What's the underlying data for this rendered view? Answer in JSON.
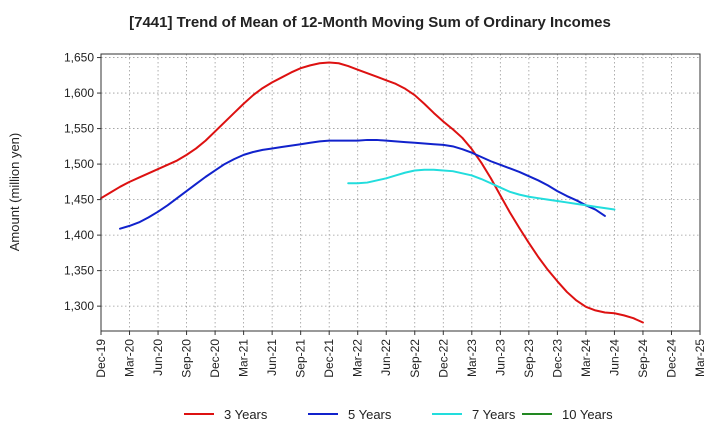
{
  "chart_data": {
    "type": "line",
    "title": "[7441]  Trend of Mean of 12-Month Moving Sum of Ordinary Incomes",
    "xlabel": "",
    "ylabel": "Amount (million yen)",
    "ylim": [
      1265,
      1655
    ],
    "yticks": [
      1300,
      1350,
      1400,
      1450,
      1500,
      1550,
      1600,
      1650
    ],
    "ytick_labels": [
      "1,300",
      "1,350",
      "1,400",
      "1,450",
      "1,500",
      "1,550",
      "1,600",
      "1,650"
    ],
    "x_start": "Dec-19",
    "x_months_total": 63,
    "xtick_labels": [
      "Dec-19",
      "Mar-20",
      "Jun-20",
      "Sep-20",
      "Dec-20",
      "Mar-21",
      "Jun-21",
      "Sep-21",
      "Dec-21",
      "Mar-22",
      "Jun-22",
      "Sep-22",
      "Dec-22",
      "Mar-23",
      "Jun-23",
      "Sep-23",
      "Dec-23",
      "Mar-24",
      "Jun-24",
      "Sep-24",
      "Dec-24",
      "Mar-25"
    ],
    "grid": true,
    "series": [
      {
        "name": "3 Years",
        "color": "#dd1111",
        "start_month": 0,
        "values": [
          1452,
          1460,
          1468,
          1475,
          1481,
          1487,
          1493,
          1499,
          1505,
          1513,
          1522,
          1533,
          1546,
          1559,
          1572,
          1585,
          1597,
          1607,
          1615,
          1622,
          1629,
          1635,
          1639,
          1642,
          1643,
          1642,
          1638,
          1633,
          1628,
          1623,
          1618,
          1613,
          1606,
          1597,
          1585,
          1572,
          1560,
          1549,
          1537,
          1521,
          1502,
          1480,
          1456,
          1432,
          1410,
          1389,
          1369,
          1351,
          1335,
          1320,
          1308,
          1299,
          1294,
          1291,
          1290,
          1287,
          1283,
          1277
        ]
      },
      {
        "name": "5 Years",
        "color": "#1122cc",
        "start_month": 2,
        "values": [
          1409,
          1413,
          1418,
          1425,
          1433,
          1442,
          1452,
          1462,
          1472,
          1482,
          1491,
          1500,
          1507,
          1513,
          1517,
          1520,
          1522,
          1524,
          1526,
          1528,
          1530,
          1532,
          1533,
          1533,
          1533,
          1533,
          1534,
          1534,
          1533,
          1532,
          1531,
          1530,
          1529,
          1528,
          1527,
          1525,
          1521,
          1516,
          1510,
          1504,
          1499,
          1494,
          1489,
          1483,
          1477,
          1470,
          1462,
          1455,
          1449,
          1442,
          1436,
          1427
        ]
      },
      {
        "name": "7 Years",
        "color": "#22dddd",
        "start_month": 26,
        "values": [
          1473,
          1473,
          1474,
          1477,
          1480,
          1484,
          1488,
          1491,
          1492,
          1492,
          1491,
          1490,
          1487,
          1484,
          1479,
          1473,
          1467,
          1461,
          1457,
          1454,
          1452,
          1450,
          1448,
          1446,
          1444,
          1442,
          1440,
          1438,
          1436
        ]
      },
      {
        "name": "10 Years",
        "color": "#228822",
        "start_month": 0,
        "values": []
      }
    ]
  }
}
